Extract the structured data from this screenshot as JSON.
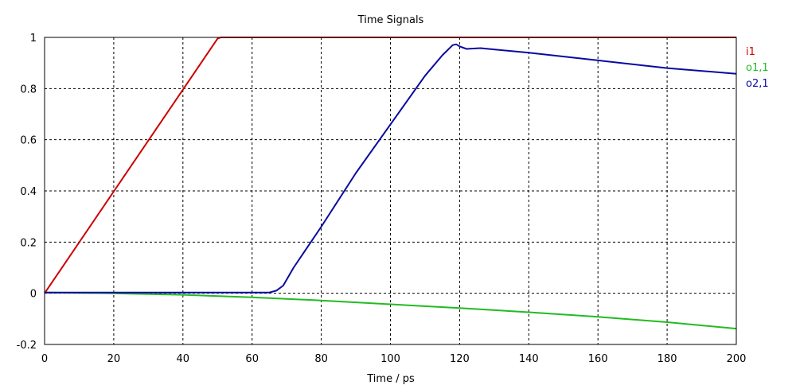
{
  "chart_data": {
    "type": "line",
    "title": "Time Signals",
    "xlabel": "Time / ps",
    "ylabel": "",
    "xlim": [
      0,
      200
    ],
    "ylim": [
      -0.2,
      1
    ],
    "x_ticks": [
      0,
      20,
      40,
      60,
      80,
      100,
      120,
      140,
      160,
      180,
      200
    ],
    "y_ticks": [
      -0.2,
      0,
      0.2,
      0.4,
      0.6,
      0.8,
      1
    ],
    "x_tick_labels": [
      "0",
      "20",
      "40",
      "60",
      "80",
      "100",
      "120",
      "140",
      "160",
      "180",
      "200"
    ],
    "y_tick_labels": [
      "-0.2",
      "0",
      "0.2",
      "0.4",
      "0.6",
      "0.8",
      "1"
    ],
    "grid": true,
    "legend_position": "right",
    "series": [
      {
        "name": "i1",
        "color": "#cc0000",
        "x": [
          0,
          50,
          51,
          200
        ],
        "y": [
          0,
          0.995,
          1,
          1
        ]
      },
      {
        "name": "o1,1",
        "color": "#22bb22",
        "x": [
          0,
          20,
          40,
          60,
          80,
          100,
          120,
          140,
          160,
          180,
          200
        ],
        "y": [
          0.003,
          0.0,
          -0.006,
          -0.016,
          -0.028,
          -0.043,
          -0.058,
          -0.074,
          -0.092,
          -0.113,
          -0.138
        ]
      },
      {
        "name": "o2,1",
        "color": "#0a0aa0",
        "x": [
          0,
          20,
          40,
          60,
          65,
          67,
          69,
          72,
          80,
          90,
          100,
          110,
          115,
          118,
          119,
          120,
          122,
          126,
          140,
          160,
          180,
          200
        ],
        "y": [
          0.003,
          0.003,
          0.003,
          0.003,
          0.003,
          0.01,
          0.03,
          0.1,
          0.26,
          0.47,
          0.66,
          0.85,
          0.93,
          0.97,
          0.973,
          0.965,
          0.955,
          0.958,
          0.94,
          0.91,
          0.88,
          0.858
        ]
      }
    ]
  }
}
